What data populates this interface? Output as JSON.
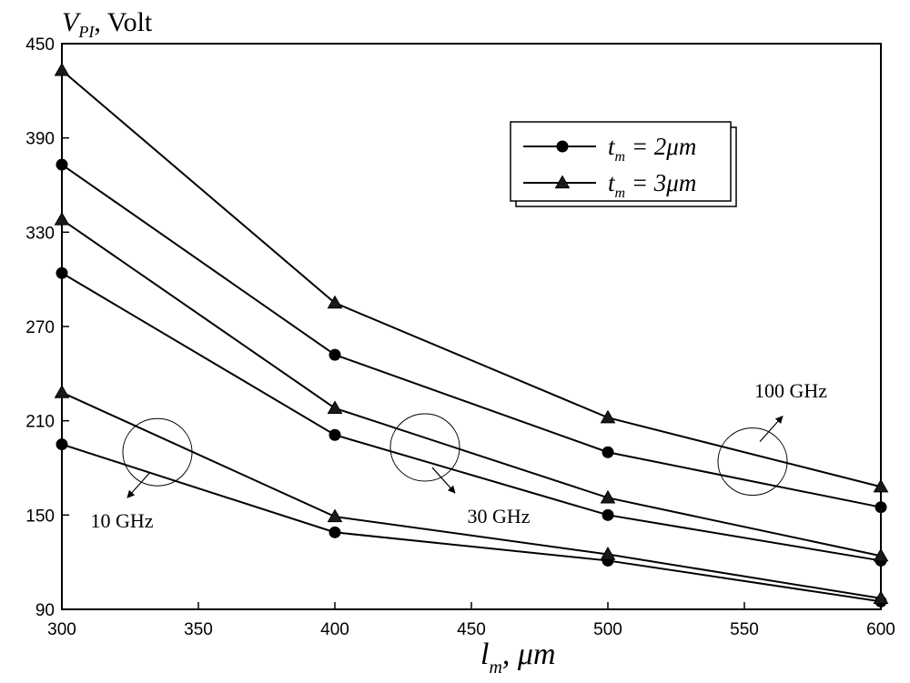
{
  "chart_data": {
    "type": "line",
    "ylabel_main": "V",
    "ylabel_sub": "PI",
    "ylabel_unit": ", Volt",
    "xlabel_main": "l",
    "xlabel_sub": "m",
    "xlabel_unit": ", μm",
    "xlim": [
      300,
      600
    ],
    "ylim": [
      90,
      450
    ],
    "xticks": [
      "300",
      "350",
      "400",
      "450",
      "500",
      "550",
      "600"
    ],
    "yticks": [
      "90",
      "150",
      "210",
      "270",
      "330",
      "390",
      "450"
    ],
    "x": [
      300,
      400,
      500,
      600
    ],
    "legend": {
      "position": "upper-right",
      "entries": [
        {
          "marker": "circle",
          "var": "t",
          "sub": "m",
          "rest": " = 2μm"
        },
        {
          "marker": "triangle",
          "var": "t",
          "sub": "m",
          "rest": " = 3μm"
        }
      ]
    },
    "series": [
      {
        "marker": "circle",
        "group": "10 GHz",
        "values": [
          195,
          139,
          121,
          95
        ]
      },
      {
        "marker": "triangle",
        "group": "10 GHz",
        "values": [
          228,
          149,
          125,
          97
        ]
      },
      {
        "marker": "circle",
        "group": "30 GHz",
        "values": [
          304,
          201,
          150,
          121
        ]
      },
      {
        "marker": "triangle",
        "group": "30 GHz",
        "values": [
          338,
          218,
          161,
          124
        ]
      },
      {
        "marker": "circle",
        "group": "100 GHz",
        "values": [
          373,
          252,
          190,
          155
        ]
      },
      {
        "marker": "triangle",
        "group": "100 GHz",
        "values": [
          433,
          285,
          212,
          168
        ]
      }
    ],
    "annotations": [
      {
        "text": "10 GHz",
        "at": [
          335,
          190
        ],
        "label_at": [
          322,
          142
        ],
        "arrow_dir": "down-left"
      },
      {
        "text": "30 GHz",
        "at": [
          433,
          193
        ],
        "label_at": [
          460,
          145
        ],
        "arrow_dir": "down-right"
      },
      {
        "text": "100 GHz",
        "at": [
          553,
          184
        ],
        "label_at": [
          567,
          225
        ],
        "arrow_dir": "up-right"
      }
    ]
  }
}
